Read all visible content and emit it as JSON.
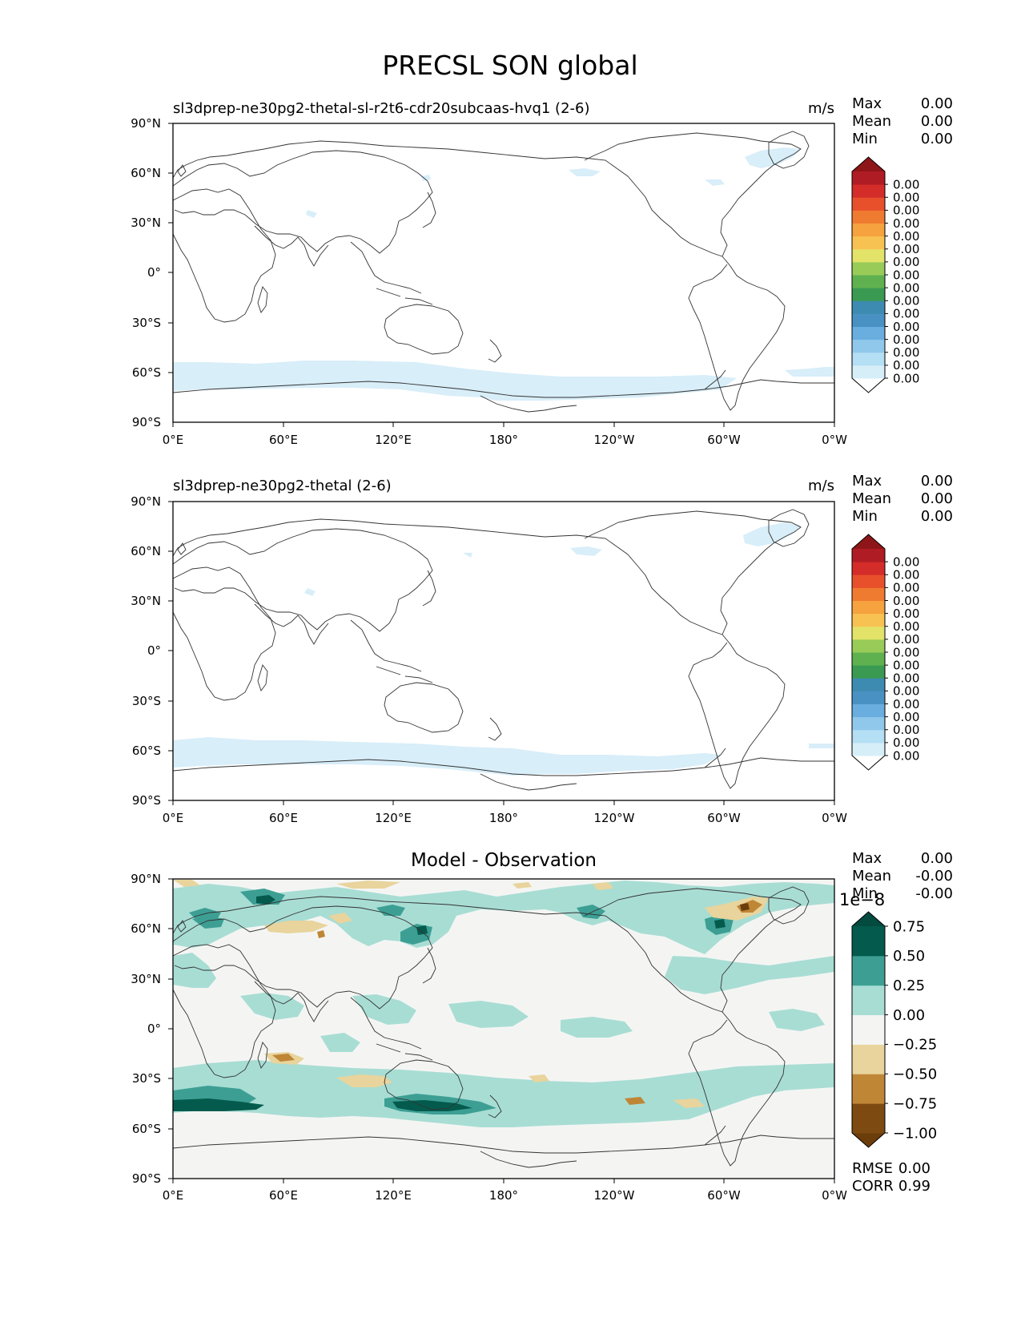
{
  "figure": {
    "title": "PRECSL SON global"
  },
  "chart_data": [
    {
      "type": "heatmap",
      "title": "sl3dprep-ne30pg2-thetal-sl-r2t6-cdr20subcaas-hvq1 (2-6)",
      "units": "m/s",
      "stats": [
        {
          "label": "Max",
          "value": "0.00"
        },
        {
          "label": "Mean",
          "value": "0.00"
        },
        {
          "label": "Min",
          "value": "0.00"
        }
      ],
      "xticks": [
        "0°E",
        "60°E",
        "120°E",
        "180°",
        "120°W",
        "60°W",
        "0°W"
      ],
      "yticks": [
        "90°N",
        "60°N",
        "30°N",
        "0°",
        "30°S",
        "60°S",
        "90°S"
      ],
      "xlim": [
        0,
        360
      ],
      "ylim": [
        -90,
        90
      ],
      "colorbar": {
        "extend": "both",
        "labels": [
          "0.00",
          "0.00",
          "0.00",
          "0.00",
          "0.00",
          "0.00",
          "0.00",
          "0.00",
          "0.00",
          "0.00",
          "0.00",
          "0.00",
          "0.00",
          "0.00",
          "0.00",
          "0.00"
        ],
        "colors": [
          "#ffffff",
          "#d6eef8",
          "#b4dff4",
          "#90c8eb",
          "#6aaedf",
          "#4a91c3",
          "#3d8bb0",
          "#3a9a52",
          "#5fb14f",
          "#98cb58",
          "#e3e36a",
          "#f8c252",
          "#f5a23f",
          "#ef7b30",
          "#e8502c",
          "#d42d29",
          "#b01c24",
          "#8e1618"
        ]
      }
    },
    {
      "type": "heatmap",
      "title": "sl3dprep-ne30pg2-thetal (2-6)",
      "units": "m/s",
      "stats": [
        {
          "label": "Max",
          "value": "0.00"
        },
        {
          "label": "Mean",
          "value": "0.00"
        },
        {
          "label": "Min",
          "value": "0.00"
        }
      ],
      "xticks": [
        "0°E",
        "60°E",
        "120°E",
        "180°",
        "120°W",
        "60°W",
        "0°W"
      ],
      "yticks": [
        "90°N",
        "60°N",
        "30°N",
        "0°",
        "30°S",
        "60°S",
        "90°S"
      ],
      "xlim": [
        0,
        360
      ],
      "ylim": [
        -90,
        90
      ],
      "colorbar": {
        "extend": "both",
        "labels": [
          "0.00",
          "0.00",
          "0.00",
          "0.00",
          "0.00",
          "0.00",
          "0.00",
          "0.00",
          "0.00",
          "0.00",
          "0.00",
          "0.00",
          "0.00",
          "0.00",
          "0.00",
          "0.00"
        ],
        "colors": [
          "#ffffff",
          "#d6eef8",
          "#b4dff4",
          "#90c8eb",
          "#6aaedf",
          "#4a91c3",
          "#3d8bb0",
          "#3a9a52",
          "#5fb14f",
          "#98cb58",
          "#e3e36a",
          "#f8c252",
          "#f5a23f",
          "#ef7b30",
          "#e8502c",
          "#d42d29",
          "#b01c24",
          "#8e1618"
        ]
      }
    },
    {
      "type": "heatmap",
      "title": "Model - Observation",
      "units": "",
      "stats": [
        {
          "label": "Max",
          "value": "0.00"
        },
        {
          "label": "Mean",
          "value": "-0.00"
        },
        {
          "label": "Min",
          "value": "-0.00"
        }
      ],
      "metrics": [
        {
          "label": "RMSE",
          "value": "0.00"
        },
        {
          "label": "CORR",
          "value": "0.99"
        }
      ],
      "xticks": [
        "0°E",
        "60°E",
        "120°E",
        "180°",
        "120°W",
        "60°W",
        "0°W"
      ],
      "yticks": [
        "90°N",
        "60°N",
        "30°N",
        "0°",
        "30°S",
        "60°S",
        "90°S"
      ],
      "xlim": [
        0,
        360
      ],
      "ylim": [
        -90,
        90
      ],
      "colorbar": {
        "extend": "both",
        "scale_label": "1e−8",
        "labels": [
          "−1.00",
          "−0.75",
          "−0.50",
          "−0.25",
          "0.00",
          "0.25",
          "0.50",
          "0.75"
        ],
        "colors": [
          "#6b3d0b",
          "#7d4a12",
          "#bf8636",
          "#e8d49c",
          "#f4f5f3",
          "#a8ddd4",
          "#3d9f94",
          "#045b4d",
          "#034a3f"
        ]
      }
    }
  ]
}
